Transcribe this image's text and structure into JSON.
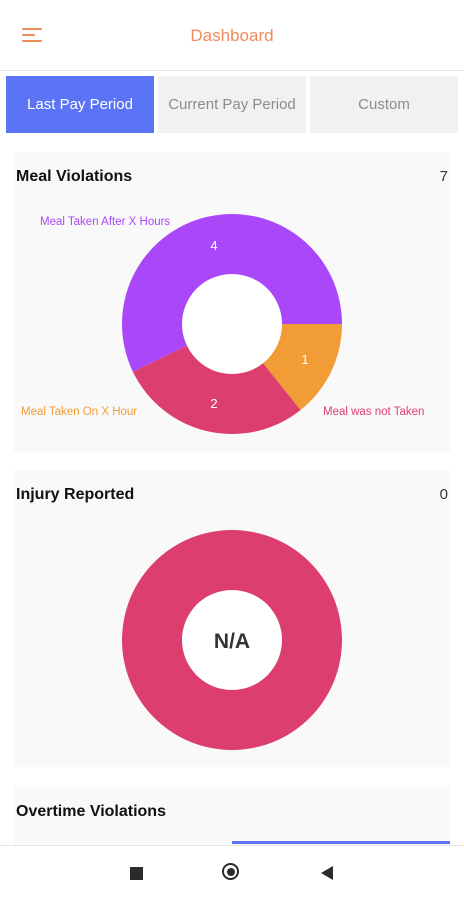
{
  "header": {
    "title": "Dashboard",
    "menu_icon": "hamburger-menu-icon"
  },
  "tabs": [
    {
      "label": "Last Pay Period",
      "active": true
    },
    {
      "label": "Current Pay Period",
      "active": false
    },
    {
      "label": "Custom",
      "active": false
    }
  ],
  "meal_violations": {
    "title": "Meal Violations",
    "count": "7",
    "labels": {
      "after_x_hours": "Meal Taken After X Hours",
      "on_x_hour": "Meal Taken On X Hour",
      "not_taken": "Meal was not Taken"
    }
  },
  "injury_reported": {
    "title": "Injury Reported",
    "count": "0",
    "center_text": "N/A"
  },
  "overtime_violations": {
    "title": "Overtime Violations"
  },
  "colors": {
    "accent": "#f08a5d",
    "active_tab": "#5b74f5",
    "purple": "#aa48f9",
    "pink": "#dc3e6e",
    "orange": "#f29c37"
  },
  "chart_data": [
    {
      "type": "pie",
      "title": "Meal Violations",
      "categories": [
        "Meal Taken After X Hours",
        "Meal was not Taken",
        "Meal Taken On X Hour"
      ],
      "values": [
        4,
        2,
        1
      ],
      "colors": [
        "#aa48f9",
        "#dc3e6e",
        "#f29c37"
      ]
    },
    {
      "type": "pie",
      "title": "Injury Reported",
      "categories": [],
      "values": [],
      "center_text": "N/A"
    }
  ],
  "navbar": {
    "icons": [
      "square-icon",
      "circle-home-icon",
      "triangle-back-icon"
    ]
  }
}
